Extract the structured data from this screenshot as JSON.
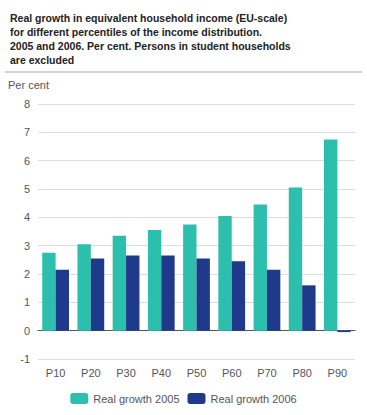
{
  "chart_data": {
    "type": "bar",
    "title": "Real growth in equivalent household income (EU-scale)\nfor different percentiles of the income distribution.\n2005 and 2006. Per cent. Persons in student households\nare excluded",
    "ylabel": "Per cent",
    "categories": [
      "P10",
      "P20",
      "P30",
      "P40",
      "P50",
      "P60",
      "P70",
      "P80",
      "P90"
    ],
    "series": [
      {
        "name": "Real growth 2005",
        "color": "#2dbfad",
        "values": [
          2.75,
          3.05,
          3.35,
          3.55,
          3.75,
          4.05,
          4.45,
          5.05,
          6.75
        ]
      },
      {
        "name": "Real growth 2006",
        "color": "#1f3a8a",
        "values": [
          2.15,
          2.55,
          2.65,
          2.65,
          2.55,
          2.45,
          2.15,
          1.6,
          -0.05
        ]
      }
    ],
    "ylim": [
      -1,
      8
    ],
    "yticks": [
      -1,
      0,
      1,
      2,
      3,
      4,
      5,
      6,
      7,
      8
    ],
    "grid": true,
    "legend": "bottom"
  }
}
